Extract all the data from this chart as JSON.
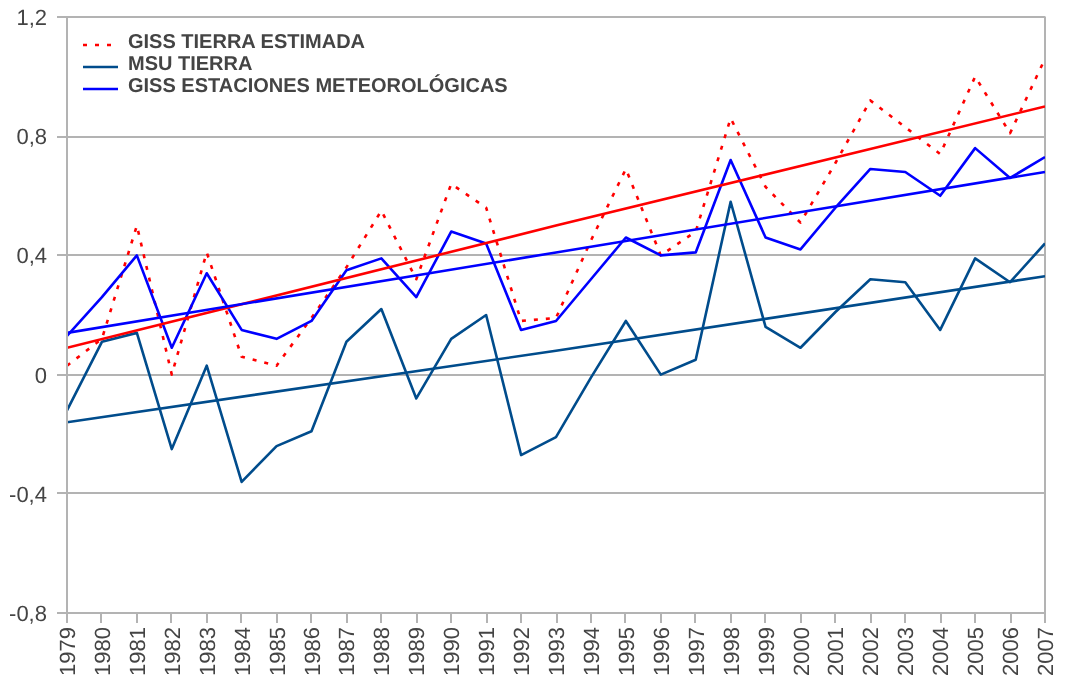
{
  "chart_data": {
    "type": "line",
    "x": [
      1979,
      1980,
      1981,
      1982,
      1983,
      1984,
      1985,
      1986,
      1987,
      1988,
      1989,
      1990,
      1991,
      1992,
      1993,
      1994,
      1995,
      1996,
      1997,
      1998,
      1999,
      2000,
      2001,
      2002,
      2003,
      2004,
      2005,
      2006,
      2007
    ],
    "series": [
      {
        "name": "GISS TIERRA ESTIMADA",
        "color": "#ff0000",
        "line_style": "dotted",
        "values": [
          0.03,
          0.12,
          0.5,
          0.0,
          0.41,
          0.06,
          0.03,
          0.19,
          0.36,
          0.55,
          0.32,
          0.64,
          0.56,
          0.18,
          0.19,
          0.45,
          0.69,
          0.4,
          0.48,
          0.86,
          0.63,
          0.51,
          0.71,
          0.92,
          0.83,
          0.74,
          1.0,
          0.81,
          1.06
        ]
      },
      {
        "name": "MSU TIERRA",
        "color": "#004c8c",
        "values": [
          -0.12,
          0.11,
          0.14,
          -0.25,
          0.03,
          -0.36,
          -0.24,
          -0.19,
          0.11,
          0.22,
          -0.08,
          0.12,
          0.2,
          -0.27,
          -0.21,
          -0.01,
          0.18,
          0.0,
          0.05,
          0.58,
          0.16,
          0.09,
          0.21,
          0.32,
          0.31,
          0.15,
          0.39,
          0.31,
          0.44
        ]
      },
      {
        "name": "GISS ESTACIONES METEOROLÓGICAS",
        "color": "#0000ff",
        "values": [
          0.13,
          0.26,
          0.4,
          0.09,
          0.34,
          0.15,
          0.12,
          0.18,
          0.35,
          0.39,
          0.26,
          0.48,
          0.44,
          0.15,
          0.18,
          0.32,
          0.46,
          0.4,
          0.41,
          0.72,
          0.46,
          0.42,
          0.56,
          0.69,
          0.68,
          0.6,
          0.76,
          0.66,
          0.73
        ]
      },
      {
        "type": "line",
        "color": "#ff0000",
        "x": [
          1979,
          1993,
          2007
        ],
        "values": [
          0.09,
          0.5,
          0.9
        ]
      },
      {
        "type": "line",
        "color": "#0000ff",
        "x": [
          1979,
          1993,
          2007
        ],
        "values": [
          0.14,
          0.41,
          0.68
        ]
      },
      {
        "type": "line",
        "color": "#004c8c",
        "x": [
          1979,
          1993,
          2007
        ],
        "values": [
          -0.16,
          0.08,
          0.33
        ]
      }
    ],
    "xlim": [
      1979,
      2007
    ],
    "xticks": [
      1979,
      1980,
      1981,
      1982,
      1983,
      1984,
      1985,
      1986,
      1987,
      1988,
      1989,
      1990,
      1991,
      1992,
      1993,
      1994,
      1995,
      1996,
      1997,
      1998,
      1999,
      2000,
      2001,
      2002,
      2003,
      2004,
      2005,
      2006,
      2007
    ],
    "ylim": [
      -0.8,
      1.2
    ],
    "yticks": [
      {
        "value": -0.8,
        "label": "-0,8"
      },
      {
        "value": -0.4,
        "label": "-0,4"
      },
      0,
      {
        "value": 0.4,
        "label": "0,4"
      },
      {
        "value": 0.8,
        "label": "0,8"
      },
      {
        "value": 1.2,
        "label": "1,2"
      }
    ],
    "grid": "y",
    "legend": "top left",
    "line_style": "solid",
    "marker": "none"
  }
}
